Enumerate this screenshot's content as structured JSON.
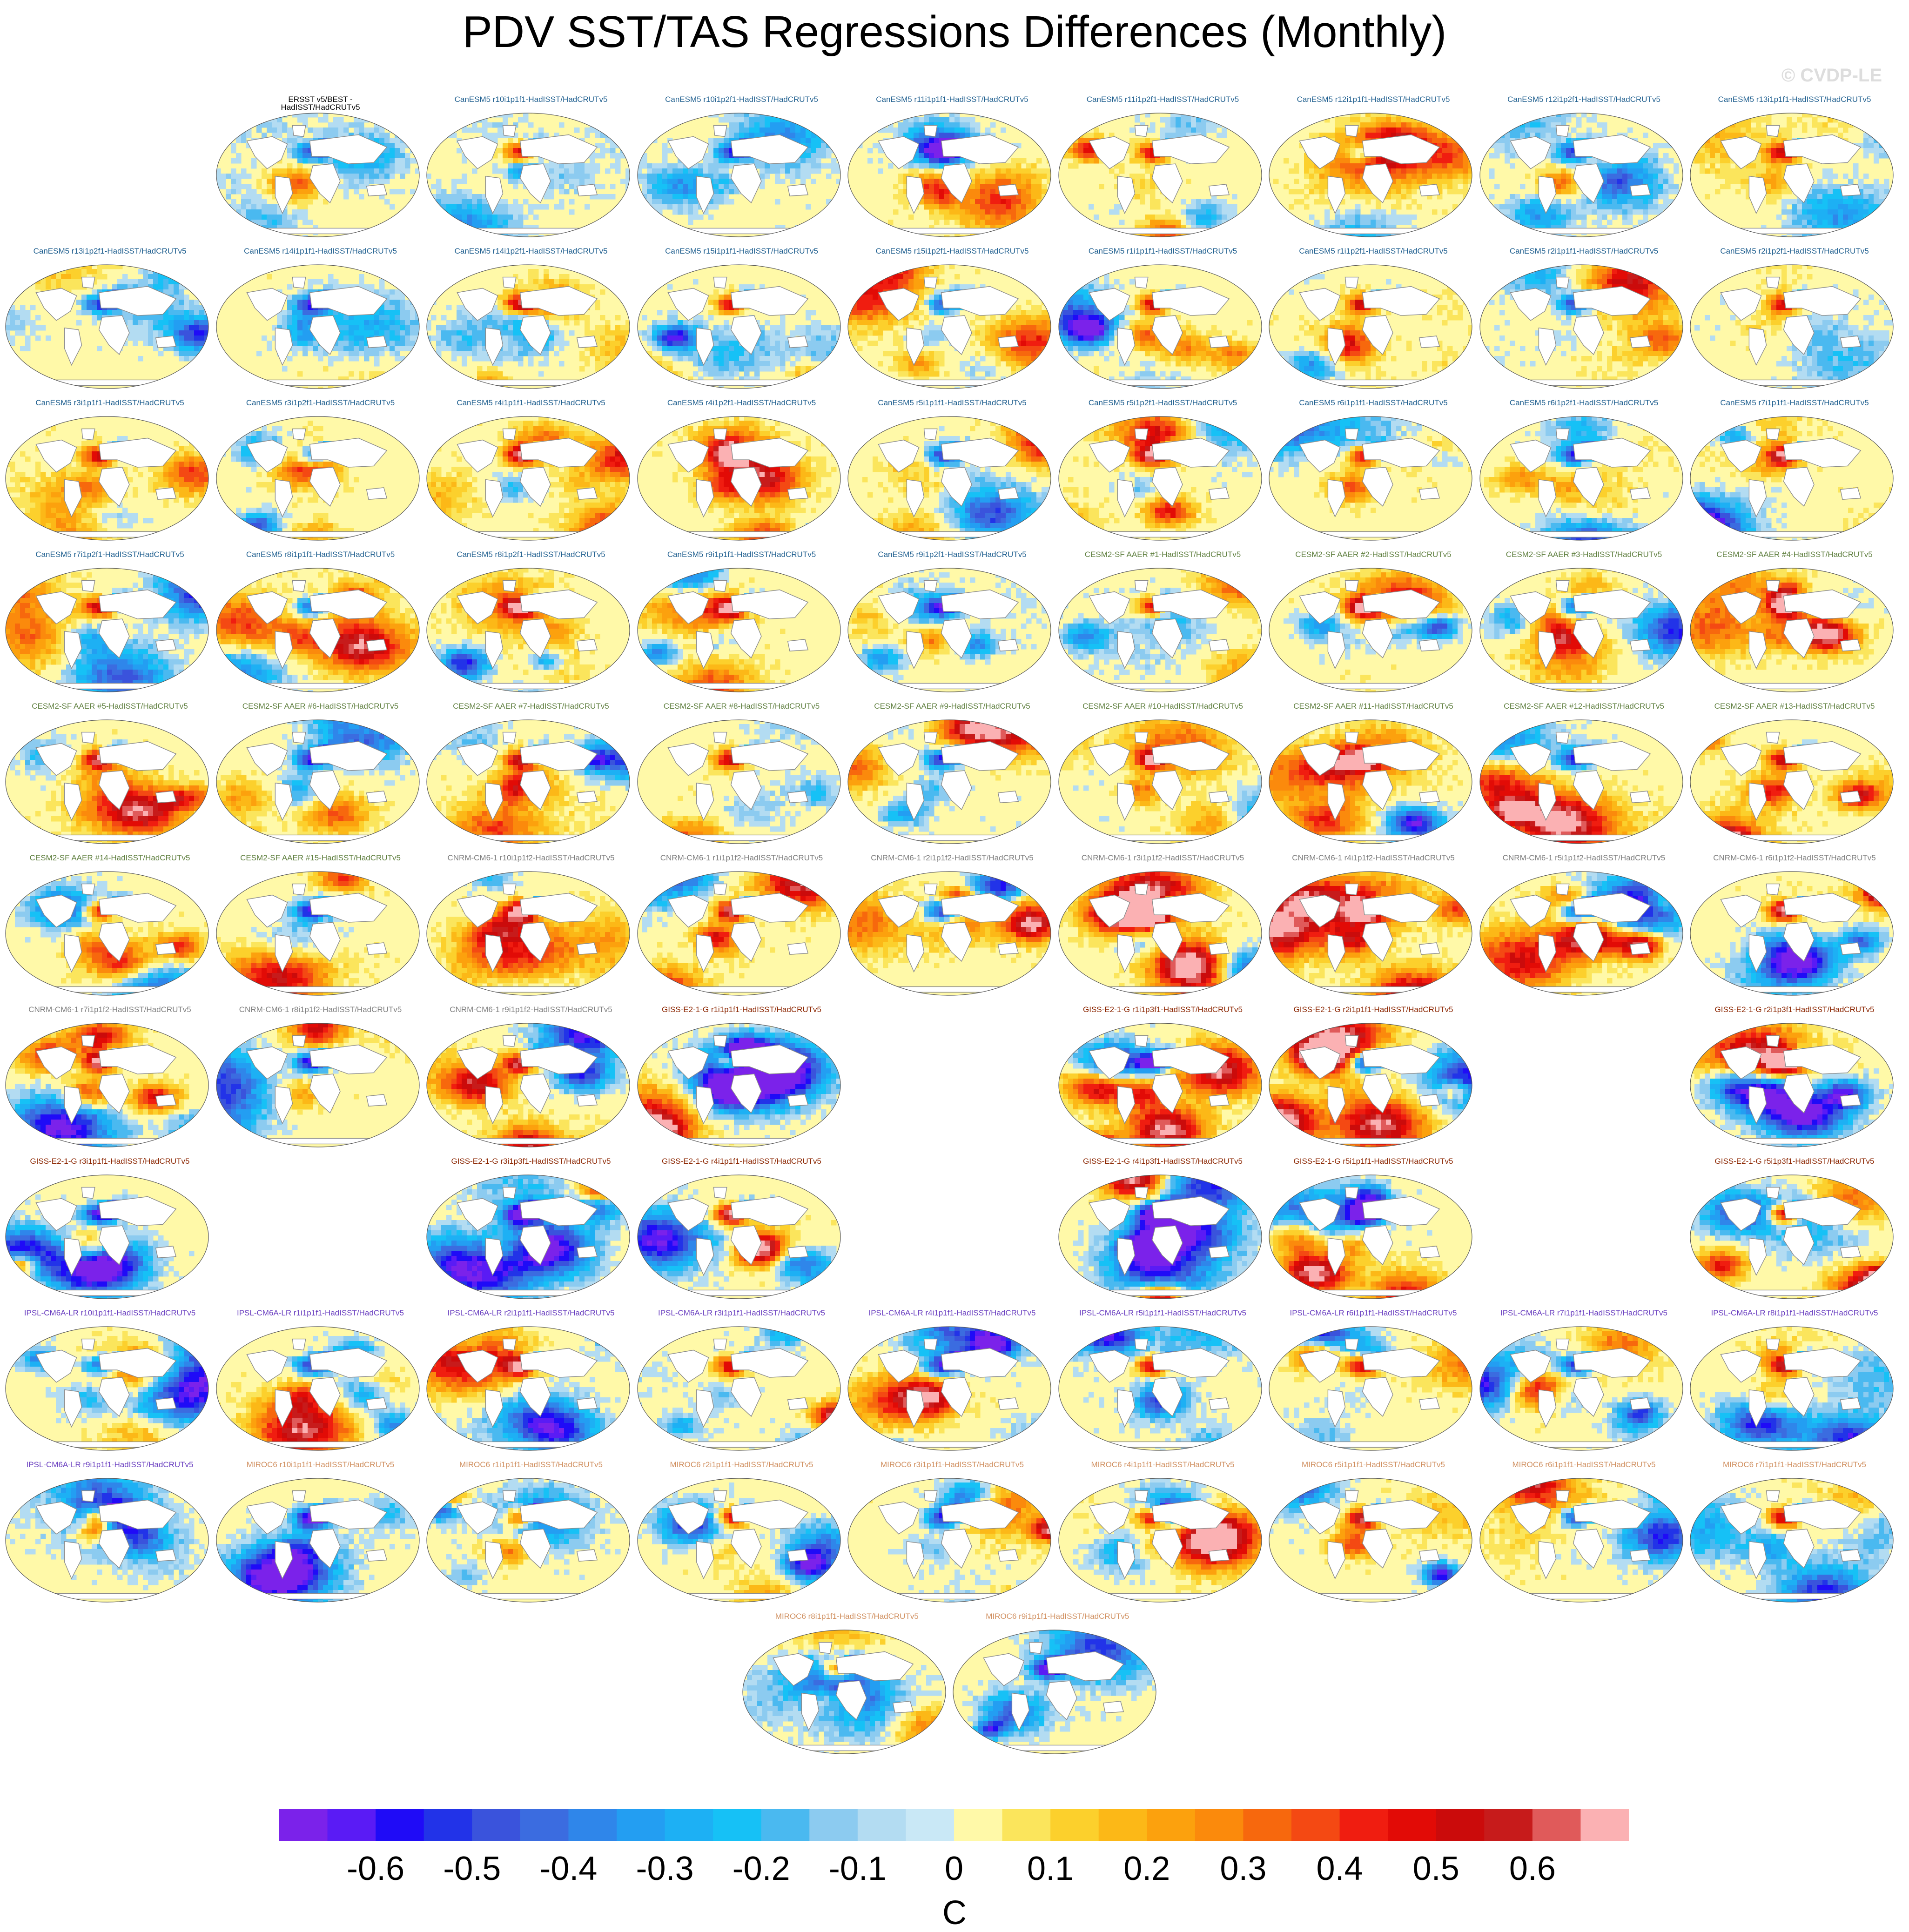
{
  "title": "PDV SST/TAS Regressions Differences (Monthly)",
  "watermark": "© CVDP-LE",
  "chart_data": {
    "type": "heatmap",
    "title": "PDV SST/TAS Regressions Differences (Monthly)",
    "units": "C",
    "contour_levels": [
      -0.7,
      -0.65,
      -0.6,
      -0.55,
      -0.5,
      -0.45,
      -0.4,
      -0.35,
      -0.3,
      -0.25,
      -0.2,
      -0.15,
      -0.1,
      -0.05,
      0,
      0.05,
      0.1,
      0.15,
      0.2,
      0.25,
      0.3,
      0.35,
      0.4,
      0.45,
      0.5,
      0.55,
      0.6,
      0.65,
      0.7
    ],
    "colorbar_tick_labels": [
      "-0.6",
      "-0.5",
      "-0.4",
      "-0.3",
      "-0.2",
      "-0.1",
      "0",
      "0.1",
      "0.2",
      "0.3",
      "0.4",
      "0.5",
      "0.6"
    ],
    "colorbar_tick_values": [
      -0.6,
      -0.5,
      -0.4,
      -0.3,
      -0.2,
      -0.1,
      0,
      0.1,
      0.2,
      0.3,
      0.4,
      0.5,
      0.6
    ],
    "colorbar_colors": [
      "#7b22ea",
      "#5a1bf5",
      "#1f0bf7",
      "#2233e8",
      "#3a53dc",
      "#3b6ce0",
      "#2f86ea",
      "#239ef2",
      "#1db0f4",
      "#16c1f6",
      "#4ab9f0",
      "#8ccbf0",
      "#b3dcf2",
      "#c9e8f6",
      "#fff9a8",
      "#fbe55c",
      "#fcd02c",
      "#fcb817",
      "#fca10d",
      "#fb8a0c",
      "#f7680d",
      "#f44913",
      "#f01d10",
      "#e20b06",
      "#cb0b0b",
      "#c71b1b",
      "#e05a5a",
      "#fbb1b3"
    ],
    "panel_grid": {
      "columns": 9
    },
    "panels": [
      {
        "label": "ERSST v5/BEST -\nHadISST/HadCRUTv5",
        "group": "obs",
        "col": 1,
        "row": 0
      },
      {
        "label": "CanESM5 r10i1p1f1-HadISST/HadCRUTv5",
        "group": "CanESM5",
        "col": 2,
        "row": 0
      },
      {
        "label": "CanESM5 r10i1p2f1-HadISST/HadCRUTv5",
        "group": "CanESM5",
        "col": 3,
        "row": 0
      },
      {
        "label": "CanESM5 r11i1p1f1-HadISST/HadCRUTv5",
        "group": "CanESM5",
        "col": 4,
        "row": 0
      },
      {
        "label": "CanESM5 r11i1p2f1-HadISST/HadCRUTv5",
        "group": "CanESM5",
        "col": 5,
        "row": 0
      },
      {
        "label": "CanESM5 r12i1p1f1-HadISST/HadCRUTv5",
        "group": "CanESM5",
        "col": 6,
        "row": 0
      },
      {
        "label": "CanESM5 r12i1p2f1-HadISST/HadCRUTv5",
        "group": "CanESM5",
        "col": 7,
        "row": 0
      },
      {
        "label": "CanESM5 r13i1p1f1-HadISST/HadCRUTv5",
        "group": "CanESM5",
        "col": 8,
        "row": 0
      },
      {
        "label": "CanESM5 r13i1p2f1-HadISST/HadCRUTv5",
        "group": "CanESM5",
        "col": 0,
        "row": 1
      },
      {
        "label": "CanESM5 r14i1p1f1-HadISST/HadCRUTv5",
        "group": "CanESM5",
        "col": 1,
        "row": 1
      },
      {
        "label": "CanESM5 r14i1p2f1-HadISST/HadCRUTv5",
        "group": "CanESM5",
        "col": 2,
        "row": 1
      },
      {
        "label": "CanESM5 r15i1p1f1-HadISST/HadCRUTv5",
        "group": "CanESM5",
        "col": 3,
        "row": 1
      },
      {
        "label": "CanESM5 r15i1p2f1-HadISST/HadCRUTv5",
        "group": "CanESM5",
        "col": 4,
        "row": 1
      },
      {
        "label": "CanESM5 r1i1p1f1-HadISST/HadCRUTv5",
        "group": "CanESM5",
        "col": 5,
        "row": 1
      },
      {
        "label": "CanESM5 r1i1p2f1-HadISST/HadCRUTv5",
        "group": "CanESM5",
        "col": 6,
        "row": 1
      },
      {
        "label": "CanESM5 r2i1p1f1-HadISST/HadCRUTv5",
        "group": "CanESM5",
        "col": 7,
        "row": 1
      },
      {
        "label": "CanESM5 r2i1p2f1-HadISST/HadCRUTv5",
        "group": "CanESM5",
        "col": 8,
        "row": 1
      },
      {
        "label": "CanESM5 r3i1p1f1-HadISST/HadCRUTv5",
        "group": "CanESM5",
        "col": 0,
        "row": 2
      },
      {
        "label": "CanESM5 r3i1p2f1-HadISST/HadCRUTv5",
        "group": "CanESM5",
        "col": 1,
        "row": 2
      },
      {
        "label": "CanESM5 r4i1p1f1-HadISST/HadCRUTv5",
        "group": "CanESM5",
        "col": 2,
        "row": 2
      },
      {
        "label": "CanESM5 r4i1p2f1-HadISST/HadCRUTv5",
        "group": "CanESM5",
        "col": 3,
        "row": 2
      },
      {
        "label": "CanESM5 r5i1p1f1-HadISST/HadCRUTv5",
        "group": "CanESM5",
        "col": 4,
        "row": 2
      },
      {
        "label": "CanESM5 r5i1p2f1-HadISST/HadCRUTv5",
        "group": "CanESM5",
        "col": 5,
        "row": 2
      },
      {
        "label": "CanESM5 r6i1p1f1-HadISST/HadCRUTv5",
        "group": "CanESM5",
        "col": 6,
        "row": 2
      },
      {
        "label": "CanESM5 r6i1p2f1-HadISST/HadCRUTv5",
        "group": "CanESM5",
        "col": 7,
        "row": 2
      },
      {
        "label": "CanESM5 r7i1p1f1-HadISST/HadCRUTv5",
        "group": "CanESM5",
        "col": 8,
        "row": 2
      },
      {
        "label": "CanESM5 r7i1p2f1-HadISST/HadCRUTv5",
        "group": "CanESM5",
        "col": 0,
        "row": 3
      },
      {
        "label": "CanESM5 r8i1p1f1-HadISST/HadCRUTv5",
        "group": "CanESM5",
        "col": 1,
        "row": 3
      },
      {
        "label": "CanESM5 r8i1p2f1-HadISST/HadCRUTv5",
        "group": "CanESM5",
        "col": 2,
        "row": 3
      },
      {
        "label": "CanESM5 r9i1p1f1-HadISST/HadCRUTv5",
        "group": "CanESM5",
        "col": 3,
        "row": 3
      },
      {
        "label": "CanESM5 r9i1p2f1-HadISST/HadCRUTv5",
        "group": "CanESM5",
        "col": 4,
        "row": 3
      },
      {
        "label": "CESM2-SF AAER #1-HadISST/HadCRUTv5",
        "group": "CESM2",
        "col": 5,
        "row": 3
      },
      {
        "label": "CESM2-SF AAER #2-HadISST/HadCRUTv5",
        "group": "CESM2",
        "col": 6,
        "row": 3
      },
      {
        "label": "CESM2-SF AAER #3-HadISST/HadCRUTv5",
        "group": "CESM2",
        "col": 7,
        "row": 3
      },
      {
        "label": "CESM2-SF AAER #4-HadISST/HadCRUTv5",
        "group": "CESM2",
        "col": 8,
        "row": 3
      },
      {
        "label": "CESM2-SF AAER #5-HadISST/HadCRUTv5",
        "group": "CESM2",
        "col": 0,
        "row": 4
      },
      {
        "label": "CESM2-SF AAER #6-HadISST/HadCRUTv5",
        "group": "CESM2",
        "col": 1,
        "row": 4
      },
      {
        "label": "CESM2-SF AAER #7-HadISST/HadCRUTv5",
        "group": "CESM2",
        "col": 2,
        "row": 4
      },
      {
        "label": "CESM2-SF AAER #8-HadISST/HadCRUTv5",
        "group": "CESM2",
        "col": 3,
        "row": 4
      },
      {
        "label": "CESM2-SF AAER #9-HadISST/HadCRUTv5",
        "group": "CESM2",
        "col": 4,
        "row": 4
      },
      {
        "label": "CESM2-SF AAER #10-HadISST/HadCRUTv5",
        "group": "CESM2",
        "col": 5,
        "row": 4
      },
      {
        "label": "CESM2-SF AAER #11-HadISST/HadCRUTv5",
        "group": "CESM2",
        "col": 6,
        "row": 4
      },
      {
        "label": "CESM2-SF AAER #12-HadISST/HadCRUTv5",
        "group": "CESM2",
        "col": 7,
        "row": 4
      },
      {
        "label": "CESM2-SF AAER #13-HadISST/HadCRUTv5",
        "group": "CESM2",
        "col": 8,
        "row": 4
      },
      {
        "label": "CESM2-SF AAER #14-HadISST/HadCRUTv5",
        "group": "CESM2",
        "col": 0,
        "row": 5
      },
      {
        "label": "CESM2-SF AAER #15-HadISST/HadCRUTv5",
        "group": "CESM2",
        "col": 1,
        "row": 5
      },
      {
        "label": "CNRM-CM6-1 r10i1p1f2-HadISST/HadCRUTv5",
        "group": "CNRM",
        "col": 2,
        "row": 5
      },
      {
        "label": "CNRM-CM6-1 r1i1p1f2-HadISST/HadCRUTv5",
        "group": "CNRM",
        "col": 3,
        "row": 5
      },
      {
        "label": "CNRM-CM6-1 r2i1p1f2-HadISST/HadCRUTv5",
        "group": "CNRM",
        "col": 4,
        "row": 5
      },
      {
        "label": "CNRM-CM6-1 r3i1p1f2-HadISST/HadCRUTv5",
        "group": "CNRM",
        "col": 5,
        "row": 5
      },
      {
        "label": "CNRM-CM6-1 r4i1p1f2-HadISST/HadCRUTv5",
        "group": "CNRM",
        "col": 6,
        "row": 5
      },
      {
        "label": "CNRM-CM6-1 r5i1p1f2-HadISST/HadCRUTv5",
        "group": "CNRM",
        "col": 7,
        "row": 5
      },
      {
        "label": "CNRM-CM6-1 r6i1p1f2-HadISST/HadCRUTv5",
        "group": "CNRM",
        "col": 8,
        "row": 5
      },
      {
        "label": "CNRM-CM6-1 r7i1p1f2-HadISST/HadCRUTv5",
        "group": "CNRM",
        "col": 0,
        "row": 6
      },
      {
        "label": "CNRM-CM6-1 r8i1p1f2-HadISST/HadCRUTv5",
        "group": "CNRM",
        "col": 1,
        "row": 6
      },
      {
        "label": "CNRM-CM6-1 r9i1p1f2-HadISST/HadCRUTv5",
        "group": "CNRM",
        "col": 2,
        "row": 6
      },
      {
        "label": "GISS-E2-1-G r1i1p1f1-HadISST/HadCRUTv5",
        "group": "GISS",
        "col": 3,
        "row": 6
      },
      {
        "label": "GISS-E2-1-G r1i1p3f1-HadISST/HadCRUTv5",
        "group": "GISS",
        "col": 5,
        "row": 6
      },
      {
        "label": "GISS-E2-1-G r2i1p1f1-HadISST/HadCRUTv5",
        "group": "GISS",
        "col": 6,
        "row": 6
      },
      {
        "label": "GISS-E2-1-G r2i1p3f1-HadISST/HadCRUTv5",
        "group": "GISS",
        "col": 8,
        "row": 6
      },
      {
        "label": "GISS-E2-1-G r3i1p1f1-HadISST/HadCRUTv5",
        "group": "GISS",
        "col": 0,
        "row": 7
      },
      {
        "label": "GISS-E2-1-G r3i1p3f1-HadISST/HadCRUTv5",
        "group": "GISS",
        "col": 2,
        "row": 7
      },
      {
        "label": "GISS-E2-1-G r4i1p1f1-HadISST/HadCRUTv5",
        "group": "GISS",
        "col": 3,
        "row": 7
      },
      {
        "label": "GISS-E2-1-G r4i1p3f1-HadISST/HadCRUTv5",
        "group": "GISS",
        "col": 5,
        "row": 7
      },
      {
        "label": "GISS-E2-1-G r5i1p1f1-HadISST/HadCRUTv5",
        "group": "GISS",
        "col": 6,
        "row": 7
      },
      {
        "label": "GISS-E2-1-G r5i1p3f1-HadISST/HadCRUTv5",
        "group": "GISS",
        "col": 8,
        "row": 7
      },
      {
        "label": "IPSL-CM6A-LR r10i1p1f1-HadISST/HadCRUTv5",
        "group": "IPSL",
        "col": 0,
        "row": 8
      },
      {
        "label": "IPSL-CM6A-LR r1i1p1f1-HadISST/HadCRUTv5",
        "group": "IPSL",
        "col": 1,
        "row": 8
      },
      {
        "label": "IPSL-CM6A-LR r2i1p1f1-HadISST/HadCRUTv5",
        "group": "IPSL",
        "col": 2,
        "row": 8
      },
      {
        "label": "IPSL-CM6A-LR r3i1p1f1-HadISST/HadCRUTv5",
        "group": "IPSL",
        "col": 3,
        "row": 8
      },
      {
        "label": "IPSL-CM6A-LR r4i1p1f1-HadISST/HadCRUTv5",
        "group": "IPSL",
        "col": 4,
        "row": 8
      },
      {
        "label": "IPSL-CM6A-LR r5i1p1f1-HadISST/HadCRUTv5",
        "group": "IPSL",
        "col": 5,
        "row": 8
      },
      {
        "label": "IPSL-CM6A-LR r6i1p1f1-HadISST/HadCRUTv5",
        "group": "IPSL",
        "col": 6,
        "row": 8
      },
      {
        "label": "IPSL-CM6A-LR r7i1p1f1-HadISST/HadCRUTv5",
        "group": "IPSL",
        "col": 7,
        "row": 8
      },
      {
        "label": "IPSL-CM6A-LR r8i1p1f1-HadISST/HadCRUTv5",
        "group": "IPSL",
        "col": 8,
        "row": 8
      },
      {
        "label": "IPSL-CM6A-LR r9i1p1f1-HadISST/HadCRUTv5",
        "group": "IPSL",
        "col": 0,
        "row": 9
      },
      {
        "label": "MIROC6 r10i1p1f1-HadISST/HadCRUTv5",
        "group": "MIROC6",
        "col": 1,
        "row": 9
      },
      {
        "label": "MIROC6 r1i1p1f1-HadISST/HadCRUTv5",
        "group": "MIROC6",
        "col": 2,
        "row": 9
      },
      {
        "label": "MIROC6 r2i1p1f1-HadISST/HadCRUTv5",
        "group": "MIROC6",
        "col": 3,
        "row": 9
      },
      {
        "label": "MIROC6 r3i1p1f1-HadISST/HadCRUTv5",
        "group": "MIROC6",
        "col": 4,
        "row": 9
      },
      {
        "label": "MIROC6 r4i1p1f1-HadISST/HadCRUTv5",
        "group": "MIROC6",
        "col": 5,
        "row": 9
      },
      {
        "label": "MIROC6 r5i1p1f1-HadISST/HadCRUTv5",
        "group": "MIROC6",
        "col": 6,
        "row": 9
      },
      {
        "label": "MIROC6 r6i1p1f1-HadISST/HadCRUTv5",
        "group": "MIROC6",
        "col": 7,
        "row": 9
      },
      {
        "label": "MIROC6 r7i1p1f1-HadISST/HadCRUTv5",
        "group": "MIROC6",
        "col": 8,
        "row": 9
      },
      {
        "label": "MIROC6 r8i1p1f1-HadISST/HadCRUTv5",
        "group": "MIROC6",
        "col": 3.5,
        "row": 10
      },
      {
        "label": "MIROC6 r9i1p1f1-HadISST/HadCRUTv5",
        "group": "MIROC6",
        "col": 4.5,
        "row": 10
      }
    ],
    "group_colors": {
      "obs": "#000000",
      "CanESM5": "#1f5f8f",
      "CESM2": "#5f7f3f",
      "CNRM": "#7f7f7f",
      "GISS": "#8b2500",
      "IPSL": "#6a3fc0",
      "MIROC6": "#d08f5f"
    }
  }
}
